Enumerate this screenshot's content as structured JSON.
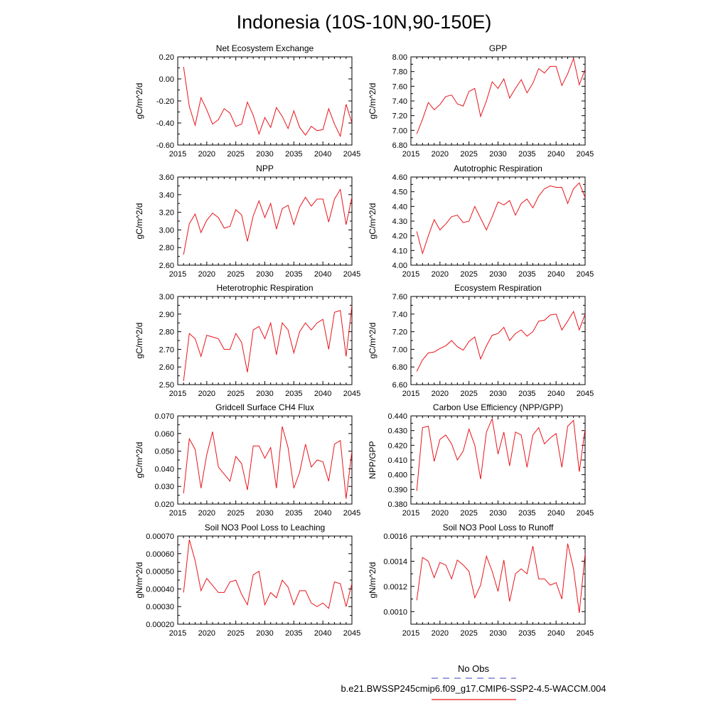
{
  "title": "Indonesia (10S-10N,90-150E)",
  "colors": {
    "series": "#e8141b",
    "obs": "#6666cc",
    "frame": "#000000"
  },
  "legend": {
    "obs_label": "No Obs",
    "model_label": "b.e21.BWSSP245cmip6.f09_g17.CMIP6-SSP2-4.5-WACCM.004"
  },
  "chart_data": [
    {
      "type": "line",
      "title": "Net Ecosystem Exchange",
      "ylabel": "gC/m^2/d",
      "xlim": [
        2015,
        2045
      ],
      "ylim": [
        -0.6,
        0.2
      ],
      "xticks": [
        2015,
        2020,
        2025,
        2030,
        2035,
        2040,
        2045
      ],
      "yticks": [
        "-0.60",
        "-0.40",
        "-0.20",
        "0.00",
        "0.20"
      ],
      "x": [
        2016,
        2017,
        2018,
        2019,
        2020,
        2021,
        2022,
        2023,
        2024,
        2025,
        2026,
        2027,
        2028,
        2029,
        2030,
        2031,
        2032,
        2033,
        2034,
        2035,
        2036,
        2037,
        2038,
        2039,
        2040,
        2041,
        2042,
        2043,
        2044,
        2045
      ],
      "values": [
        0.11,
        -0.25,
        -0.42,
        -0.17,
        -0.28,
        -0.41,
        -0.37,
        -0.27,
        -0.31,
        -0.43,
        -0.41,
        -0.21,
        -0.33,
        -0.5,
        -0.35,
        -0.44,
        -0.26,
        -0.34,
        -0.45,
        -0.29,
        -0.44,
        -0.51,
        -0.43,
        -0.47,
        -0.46,
        -0.27,
        -0.41,
        -0.52,
        -0.23,
        -0.4
      ]
    },
    {
      "type": "line",
      "title": "GPP",
      "ylabel": "gC/m^2/d",
      "xlim": [
        2015,
        2045
      ],
      "ylim": [
        6.8,
        8.0
      ],
      "xticks": [
        2015,
        2020,
        2025,
        2030,
        2035,
        2040,
        2045
      ],
      "yticks": [
        "6.80",
        "7.00",
        "7.20",
        "7.40",
        "7.60",
        "7.80",
        "8.00"
      ],
      "x": [
        2016,
        2017,
        2018,
        2019,
        2020,
        2021,
        2022,
        2023,
        2024,
        2025,
        2026,
        2027,
        2028,
        2029,
        2030,
        2031,
        2032,
        2033,
        2034,
        2035,
        2036,
        2037,
        2038,
        2039,
        2040,
        2041,
        2042,
        2043,
        2044,
        2045
      ],
      "values": [
        6.95,
        7.15,
        7.38,
        7.28,
        7.35,
        7.46,
        7.48,
        7.36,
        7.33,
        7.53,
        7.57,
        7.19,
        7.4,
        7.66,
        7.57,
        7.7,
        7.44,
        7.57,
        7.69,
        7.51,
        7.64,
        7.84,
        7.78,
        7.87,
        7.87,
        7.61,
        7.77,
        7.98,
        7.62,
        7.83
      ]
    },
    {
      "type": "line",
      "title": "NPP",
      "ylabel": "gC/m^2/d",
      "xlim": [
        2015,
        2045
      ],
      "ylim": [
        2.6,
        3.6
      ],
      "xticks": [
        2015,
        2020,
        2025,
        2030,
        2035,
        2040,
        2045
      ],
      "yticks": [
        "2.60",
        "2.80",
        "3.00",
        "3.20",
        "3.40",
        "3.60"
      ],
      "x": [
        2016,
        2017,
        2018,
        2019,
        2020,
        2021,
        2022,
        2023,
        2024,
        2025,
        2026,
        2027,
        2028,
        2029,
        2030,
        2031,
        2032,
        2033,
        2034,
        2035,
        2036,
        2037,
        2038,
        2039,
        2040,
        2041,
        2042,
        2043,
        2044,
        2045
      ],
      "values": [
        2.72,
        3.07,
        3.18,
        2.97,
        3.11,
        3.19,
        3.14,
        3.02,
        3.04,
        3.23,
        3.17,
        2.87,
        3.16,
        3.33,
        3.14,
        3.3,
        3.01,
        3.24,
        3.28,
        3.06,
        3.26,
        3.37,
        3.27,
        3.35,
        3.35,
        3.09,
        3.35,
        3.46,
        3.06,
        3.37
      ]
    },
    {
      "type": "line",
      "title": "Autotrophic Respiration",
      "ylabel": "gC/m^2/d",
      "xlim": [
        2015,
        2045
      ],
      "ylim": [
        4.0,
        4.6
      ],
      "xticks": [
        2015,
        2020,
        2025,
        2030,
        2035,
        2040,
        2045
      ],
      "yticks": [
        "4.00",
        "4.10",
        "4.20",
        "4.30",
        "4.40",
        "4.50",
        "4.60"
      ],
      "x": [
        2016,
        2017,
        2018,
        2019,
        2020,
        2021,
        2022,
        2023,
        2024,
        2025,
        2026,
        2027,
        2028,
        2029,
        2030,
        2031,
        2032,
        2033,
        2034,
        2035,
        2036,
        2037,
        2038,
        2039,
        2040,
        2041,
        2042,
        2043,
        2044,
        2045
      ],
      "values": [
        4.23,
        4.08,
        4.2,
        4.31,
        4.24,
        4.28,
        4.33,
        4.34,
        4.29,
        4.3,
        4.4,
        4.32,
        4.24,
        4.33,
        4.43,
        4.41,
        4.44,
        4.34,
        4.42,
        4.45,
        4.39,
        4.47,
        4.52,
        4.54,
        4.53,
        4.53,
        4.42,
        4.52,
        4.56,
        4.46
      ]
    },
    {
      "type": "line",
      "title": "Heterotrophic Respiration",
      "ylabel": "gC/m^2/d",
      "xlim": [
        2015,
        2045
      ],
      "ylim": [
        2.5,
        3.0
      ],
      "xticks": [
        2015,
        2020,
        2025,
        2030,
        2035,
        2040,
        2045
      ],
      "yticks": [
        "2.50",
        "2.60",
        "2.70",
        "2.80",
        "2.90",
        "3.00"
      ],
      "x": [
        2016,
        2017,
        2018,
        2019,
        2020,
        2021,
        2022,
        2023,
        2024,
        2025,
        2026,
        2027,
        2028,
        2029,
        2030,
        2031,
        2032,
        2033,
        2034,
        2035,
        2036,
        2037,
        2038,
        2039,
        2040,
        2041,
        2042,
        2043,
        2044,
        2045
      ],
      "values": [
        2.52,
        2.79,
        2.76,
        2.66,
        2.78,
        2.77,
        2.76,
        2.7,
        2.7,
        2.79,
        2.74,
        2.57,
        2.81,
        2.83,
        2.76,
        2.85,
        2.67,
        2.85,
        2.81,
        2.68,
        2.8,
        2.85,
        2.81,
        2.85,
        2.87,
        2.7,
        2.91,
        2.92,
        2.66,
        2.95
      ]
    },
    {
      "type": "line",
      "title": "Ecosystem Respiration",
      "ylabel": "gC/m^2/d",
      "xlim": [
        2015,
        2045
      ],
      "ylim": [
        6.6,
        7.6
      ],
      "xticks": [
        2015,
        2020,
        2025,
        2030,
        2035,
        2040,
        2045
      ],
      "yticks": [
        "6.60",
        "6.80",
        "7.00",
        "7.20",
        "7.40",
        "7.60"
      ],
      "x": [
        2016,
        2017,
        2018,
        2019,
        2020,
        2021,
        2022,
        2023,
        2024,
        2025,
        2026,
        2027,
        2028,
        2029,
        2030,
        2031,
        2032,
        2033,
        2034,
        2035,
        2036,
        2037,
        2038,
        2039,
        2040,
        2041,
        2042,
        2043,
        2044,
        2045
      ],
      "values": [
        6.75,
        6.88,
        6.96,
        6.97,
        7.01,
        7.04,
        7.1,
        7.03,
        6.99,
        7.09,
        7.14,
        6.89,
        7.04,
        7.16,
        7.18,
        7.25,
        7.1,
        7.18,
        7.22,
        7.15,
        7.2,
        7.32,
        7.33,
        7.39,
        7.4,
        7.22,
        7.32,
        7.43,
        7.22,
        7.4
      ]
    },
    {
      "type": "line",
      "title": "Gridcell Surface CH4 Flux",
      "ylabel": "gC/m^2/d",
      "xlim": [
        2015,
        2045
      ],
      "ylim": [
        0.02,
        0.07
      ],
      "xticks": [
        2015,
        2020,
        2025,
        2030,
        2035,
        2040,
        2045
      ],
      "yticks": [
        "0.020",
        "0.030",
        "0.040",
        "0.050",
        "0.060",
        "0.070"
      ],
      "x": [
        2016,
        2017,
        2018,
        2019,
        2020,
        2021,
        2022,
        2023,
        2024,
        2025,
        2026,
        2027,
        2028,
        2029,
        2030,
        2031,
        2032,
        2033,
        2034,
        2035,
        2036,
        2037,
        2038,
        2039,
        2040,
        2041,
        2042,
        2043,
        2044,
        2045
      ],
      "values": [
        0.026,
        0.057,
        0.051,
        0.029,
        0.048,
        0.061,
        0.041,
        0.037,
        0.033,
        0.047,
        0.043,
        0.028,
        0.053,
        0.053,
        0.046,
        0.052,
        0.029,
        0.064,
        0.052,
        0.029,
        0.038,
        0.054,
        0.041,
        0.045,
        0.044,
        0.033,
        0.054,
        0.056,
        0.023,
        0.05
      ]
    },
    {
      "type": "line",
      "title": "Carbon Use Efficiency (NPP/GPP)",
      "ylabel": "NPP/GPP",
      "xlim": [
        2015,
        2045
      ],
      "ylim": [
        0.38,
        0.44
      ],
      "xticks": [
        2015,
        2020,
        2025,
        2030,
        2035,
        2040,
        2045
      ],
      "yticks": [
        "0.380",
        "0.390",
        "0.400",
        "0.410",
        "0.420",
        "0.430",
        "0.440"
      ],
      "x": [
        2016,
        2017,
        2018,
        2019,
        2020,
        2021,
        2022,
        2023,
        2024,
        2025,
        2026,
        2027,
        2028,
        2029,
        2030,
        2031,
        2032,
        2033,
        2034,
        2035,
        2036,
        2037,
        2038,
        2039,
        2040,
        2041,
        2042,
        2043,
        2044,
        2045
      ],
      "values": [
        0.389,
        0.432,
        0.433,
        0.409,
        0.424,
        0.427,
        0.421,
        0.41,
        0.416,
        0.431,
        0.42,
        0.397,
        0.429,
        0.438,
        0.414,
        0.429,
        0.406,
        0.429,
        0.427,
        0.405,
        0.427,
        0.432,
        0.421,
        0.425,
        0.428,
        0.405,
        0.433,
        0.437,
        0.402,
        0.431
      ]
    },
    {
      "type": "line",
      "title": "Soil NO3 Pool Loss to Leaching",
      "ylabel": "gN/m^2/d",
      "xlim": [
        2015,
        2045
      ],
      "ylim": [
        0.0002,
        0.0007
      ],
      "xticks": [
        2015,
        2020,
        2025,
        2030,
        2035,
        2040,
        2045
      ],
      "yticks": [
        "0.00020",
        "0.00030",
        "0.00040",
        "0.00050",
        "0.00060",
        "0.00070"
      ],
      "x": [
        2016,
        2017,
        2018,
        2019,
        2020,
        2021,
        2022,
        2023,
        2024,
        2025,
        2026,
        2027,
        2028,
        2029,
        2030,
        2031,
        2032,
        2033,
        2034,
        2035,
        2036,
        2037,
        2038,
        2039,
        2040,
        2041,
        2042,
        2043,
        2044,
        2045
      ],
      "values": [
        0.00038,
        0.00068,
        0.00056,
        0.00039,
        0.00046,
        0.00042,
        0.00038,
        0.00038,
        0.00044,
        0.00045,
        0.00037,
        0.00031,
        0.00048,
        0.0005,
        0.00031,
        0.00038,
        0.00035,
        0.00045,
        0.00041,
        0.00031,
        0.00039,
        0.00039,
        0.00032,
        0.0003,
        0.00032,
        0.00029,
        0.00044,
        0.00043,
        0.0003,
        0.00043
      ]
    },
    {
      "type": "line",
      "title": "Soil NO3 Pool Loss to Runoff",
      "ylabel": "gN/m^2/d",
      "xlim": [
        2015,
        2045
      ],
      "ylim": [
        0.0009,
        0.0016
      ],
      "xticks": [
        2015,
        2020,
        2025,
        2030,
        2035,
        2040,
        2045
      ],
      "yticks": [
        "0.0010",
        "0.0012",
        "0.0014",
        "0.0016"
      ],
      "x": [
        2016,
        2017,
        2018,
        2019,
        2020,
        2021,
        2022,
        2023,
        2024,
        2025,
        2026,
        2027,
        2028,
        2029,
        2030,
        2031,
        2032,
        2033,
        2034,
        2035,
        2036,
        2037,
        2038,
        2039,
        2040,
        2041,
        2042,
        2043,
        2044,
        2045
      ],
      "values": [
        0.00109,
        0.00143,
        0.0014,
        0.00127,
        0.00139,
        0.00137,
        0.00126,
        0.00141,
        0.00137,
        0.00132,
        0.00111,
        0.00121,
        0.00144,
        0.00132,
        0.00116,
        0.00141,
        0.00108,
        0.0013,
        0.00134,
        0.0013,
        0.00152,
        0.00126,
        0.00126,
        0.00121,
        0.00123,
        0.0011,
        0.00154,
        0.00134,
        0.00099,
        0.00146
      ]
    }
  ]
}
